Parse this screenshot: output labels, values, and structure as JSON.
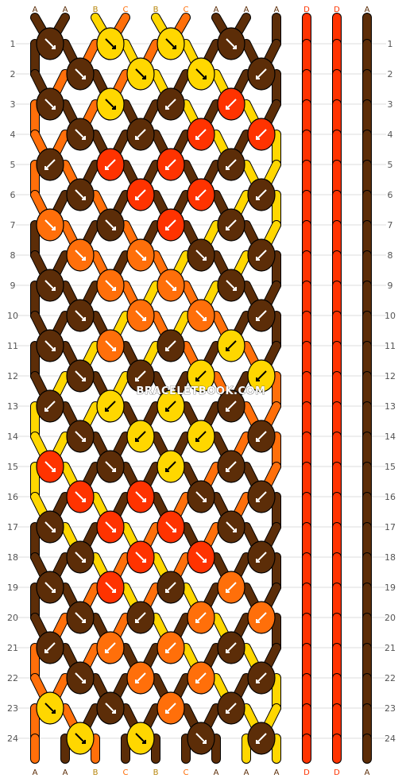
{
  "watermark": "BRACELETBOOK.COM",
  "colors": {
    "A": "#5c2d08",
    "B": "#ffd700",
    "C": "#ff6f0a",
    "D": "#ff3300"
  },
  "strands_top": [
    "A",
    "A",
    "B",
    "C",
    "B",
    "C",
    "A",
    "A",
    "A",
    "D",
    "D",
    "A"
  ],
  "strands_bottom": [
    "A",
    "A",
    "B",
    "C",
    "B",
    "C",
    "A",
    "A",
    "A",
    "D",
    "D",
    "A"
  ],
  "row_labels": [
    "1",
    "2",
    "3",
    "4",
    "5",
    "6",
    "7",
    "8",
    "9",
    "10",
    "11",
    "12",
    "13",
    "14",
    "15",
    "16",
    "17",
    "18",
    "19",
    "20",
    "21",
    "22",
    "23",
    "24"
  ],
  "rows": [
    {
      "knots": [
        {
          "c": "A",
          "d": "br"
        },
        {
          "c": "B",
          "d": "br"
        },
        {
          "c": "B",
          "d": "br"
        },
        {
          "c": "A",
          "d": "br"
        }
      ]
    },
    {
      "knots": [
        {
          "c": "A",
          "d": "br"
        },
        {
          "c": "B",
          "d": "br"
        },
        {
          "c": "B",
          "d": "br"
        },
        {
          "c": "A",
          "d": "bl"
        }
      ]
    },
    {
      "knots": [
        {
          "c": "A",
          "d": "br"
        },
        {
          "c": "B",
          "d": "br"
        },
        {
          "c": "A",
          "d": "bl"
        },
        {
          "c": "D",
          "d": "bl"
        }
      ]
    },
    {
      "knots": [
        {
          "c": "A",
          "d": "br"
        },
        {
          "c": "A",
          "d": "bl"
        },
        {
          "c": "D",
          "d": "bl"
        },
        {
          "c": "D",
          "d": "bl"
        }
      ]
    },
    {
      "knots": [
        {
          "c": "A",
          "d": "bl"
        },
        {
          "c": "D",
          "d": "bl"
        },
        {
          "c": "D",
          "d": "bl"
        },
        {
          "c": "A",
          "d": "bl"
        }
      ]
    },
    {
      "knots": [
        {
          "c": "A",
          "d": "br"
        },
        {
          "c": "D",
          "d": "bl"
        },
        {
          "c": "D",
          "d": "bl"
        },
        {
          "c": "A",
          "d": "bl"
        }
      ]
    },
    {
      "knots": [
        {
          "c": "C",
          "d": "br"
        },
        {
          "c": "A",
          "d": "br"
        },
        {
          "c": "D",
          "d": "bl"
        },
        {
          "c": "A",
          "d": "bl"
        }
      ]
    },
    {
      "knots": [
        {
          "c": "C",
          "d": "br"
        },
        {
          "c": "C",
          "d": "br"
        },
        {
          "c": "A",
          "d": "br"
        },
        {
          "c": "A",
          "d": "bl"
        }
      ]
    },
    {
      "knots": [
        {
          "c": "A",
          "d": "br"
        },
        {
          "c": "C",
          "d": "br"
        },
        {
          "c": "C",
          "d": "br"
        },
        {
          "c": "A",
          "d": "br"
        }
      ]
    },
    {
      "knots": [
        {
          "c": "A",
          "d": "br"
        },
        {
          "c": "C",
          "d": "br"
        },
        {
          "c": "C",
          "d": "br"
        },
        {
          "c": "A",
          "d": "bl"
        }
      ]
    },
    {
      "knots": [
        {
          "c": "A",
          "d": "br"
        },
        {
          "c": "C",
          "d": "br"
        },
        {
          "c": "A",
          "d": "bl"
        },
        {
          "c": "B",
          "d": "bl"
        }
      ]
    },
    {
      "knots": [
        {
          "c": "A",
          "d": "br"
        },
        {
          "c": "A",
          "d": "bl"
        },
        {
          "c": "B",
          "d": "bl"
        },
        {
          "c": "B",
          "d": "bl"
        }
      ]
    },
    {
      "knots": [
        {
          "c": "A",
          "d": "bl"
        },
        {
          "c": "B",
          "d": "bl"
        },
        {
          "c": "B",
          "d": "bl"
        },
        {
          "c": "A",
          "d": "bl"
        }
      ]
    },
    {
      "knots": [
        {
          "c": "A",
          "d": "br"
        },
        {
          "c": "B",
          "d": "bl"
        },
        {
          "c": "B",
          "d": "bl"
        },
        {
          "c": "A",
          "d": "bl"
        }
      ]
    },
    {
      "knots": [
        {
          "c": "D",
          "d": "br"
        },
        {
          "c": "A",
          "d": "br"
        },
        {
          "c": "B",
          "d": "bl"
        },
        {
          "c": "A",
          "d": "bl"
        }
      ]
    },
    {
      "knots": [
        {
          "c": "D",
          "d": "br"
        },
        {
          "c": "D",
          "d": "br"
        },
        {
          "c": "A",
          "d": "br"
        },
        {
          "c": "A",
          "d": "bl"
        }
      ]
    },
    {
      "knots": [
        {
          "c": "A",
          "d": "br"
        },
        {
          "c": "D",
          "d": "br"
        },
        {
          "c": "D",
          "d": "br"
        },
        {
          "c": "A",
          "d": "br"
        }
      ]
    },
    {
      "knots": [
        {
          "c": "A",
          "d": "br"
        },
        {
          "c": "D",
          "d": "br"
        },
        {
          "c": "D",
          "d": "br"
        },
        {
          "c": "A",
          "d": "bl"
        }
      ]
    },
    {
      "knots": [
        {
          "c": "A",
          "d": "br"
        },
        {
          "c": "D",
          "d": "br"
        },
        {
          "c": "A",
          "d": "bl"
        },
        {
          "c": "C",
          "d": "bl"
        }
      ]
    },
    {
      "knots": [
        {
          "c": "A",
          "d": "br"
        },
        {
          "c": "A",
          "d": "bl"
        },
        {
          "c": "C",
          "d": "bl"
        },
        {
          "c": "C",
          "d": "bl"
        }
      ]
    },
    {
      "knots": [
        {
          "c": "A",
          "d": "bl"
        },
        {
          "c": "C",
          "d": "bl"
        },
        {
          "c": "C",
          "d": "bl"
        },
        {
          "c": "A",
          "d": "bl"
        }
      ]
    },
    {
      "knots": [
        {
          "c": "A",
          "d": "br"
        },
        {
          "c": "C",
          "d": "bl"
        },
        {
          "c": "C",
          "d": "bl"
        },
        {
          "c": "A",
          "d": "bl"
        }
      ]
    },
    {
      "knots": [
        {
          "c": "B",
          "d": "br"
        },
        {
          "c": "A",
          "d": "br"
        },
        {
          "c": "C",
          "d": "bl"
        },
        {
          "c": "A",
          "d": "bl"
        }
      ]
    },
    {
      "knots": [
        {
          "c": "B",
          "d": "br"
        },
        {
          "c": "B",
          "d": "br"
        },
        {
          "c": "A",
          "d": "br"
        },
        {
          "c": "A",
          "d": "bl"
        }
      ]
    }
  ]
}
